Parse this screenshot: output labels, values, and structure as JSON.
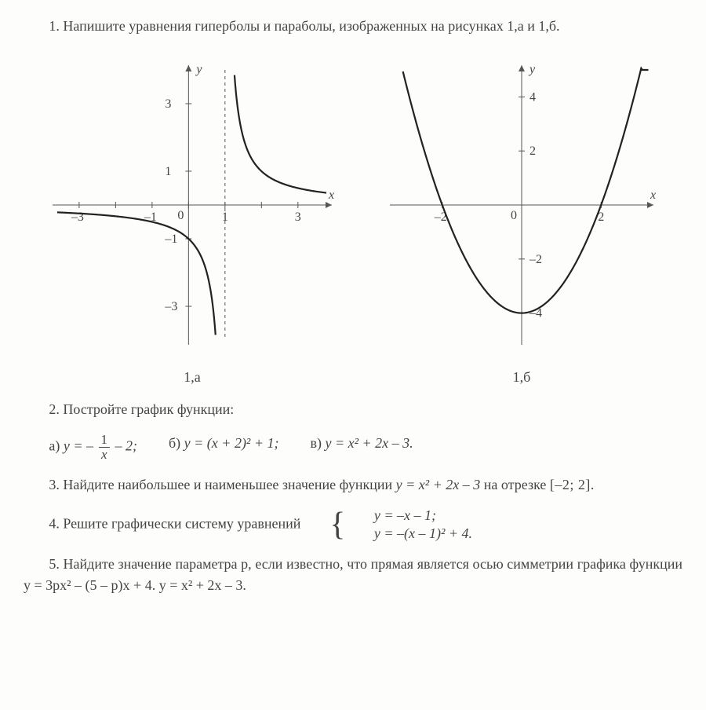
{
  "p1": {
    "text": "1. Напишите уравнения гиперболы и параболы, изображенных на рисунках 1,а и 1,б."
  },
  "chart_a": {
    "caption": "1,а",
    "type": "hyperbola",
    "x_label": "x",
    "y_label": "y",
    "xlim": [
      -3.6,
      3.8
    ],
    "ylim": [
      -4.0,
      4.0
    ],
    "asymptote_x": 1,
    "x_ticks": [
      -3,
      -2,
      -1,
      0,
      1,
      2,
      3
    ],
    "x_tick_labels": {
      "-3": "–3",
      "-1": "–1",
      "1": "1",
      "3": "3"
    },
    "y_ticks": [
      -3,
      -1,
      1,
      3
    ],
    "y_tick_labels": {
      "-3": "–3",
      "-1": "–1",
      "1": "1",
      "3": "3"
    },
    "origin_label": "0",
    "axis_color": "#555555",
    "curve_color": "#222222",
    "background_color": "#fdfdfc",
    "curve_width": 2.2
  },
  "chart_b": {
    "caption": "1,б",
    "type": "parabola",
    "x_label": "x",
    "y_label": "y",
    "xlim": [
      -3.2,
      3.2
    ],
    "ylim": [
      -5.0,
      5.0
    ],
    "x_ticks": [
      -2,
      0,
      2
    ],
    "x_tick_labels": {
      "-2": "–2",
      "2": "2"
    },
    "y_ticks": [
      -4,
      -2,
      2,
      4
    ],
    "y_tick_labels": {
      "-4": "–4",
      "-2": "–2",
      "2": "2",
      "4": "4"
    },
    "origin_label": "0",
    "vertex": [
      0,
      -4
    ],
    "a": 1,
    "axis_color": "#555555",
    "curve_color": "#222222",
    "background_color": "#fdfdfc",
    "curve_width": 2.2
  },
  "p2": {
    "lead": "2. Постройте график функции:",
    "a_label": "а) ",
    "a_pre": "y = –",
    "a_num": "1",
    "a_den": "x",
    "a_post": " – 2;",
    "b_label": "б) ",
    "b_eq": "y = (x + 2)² + 1;",
    "c_label": "в) ",
    "c_eq": "y = x² + 2x – 3."
  },
  "p3": {
    "pre": "3. Найдите наибольшее и наименьшее значение функции ",
    "func": "y = x² + 2x – 3",
    "mid": " на отрезке ",
    "interval": "[–2; 2].",
    "post": ""
  },
  "p4": {
    "pre": "4. Решите графически систему уравнений ",
    "line1": "y = –x – 1;",
    "line2": "y = –(x – 1)² + 4."
  },
  "p5": {
    "text": "5. Найдите значение параметра p, если известно, что прямая является осью симметрии графика функции  y = 3px² – (5 – p)x + 4. y = x² + 2x – 3."
  }
}
